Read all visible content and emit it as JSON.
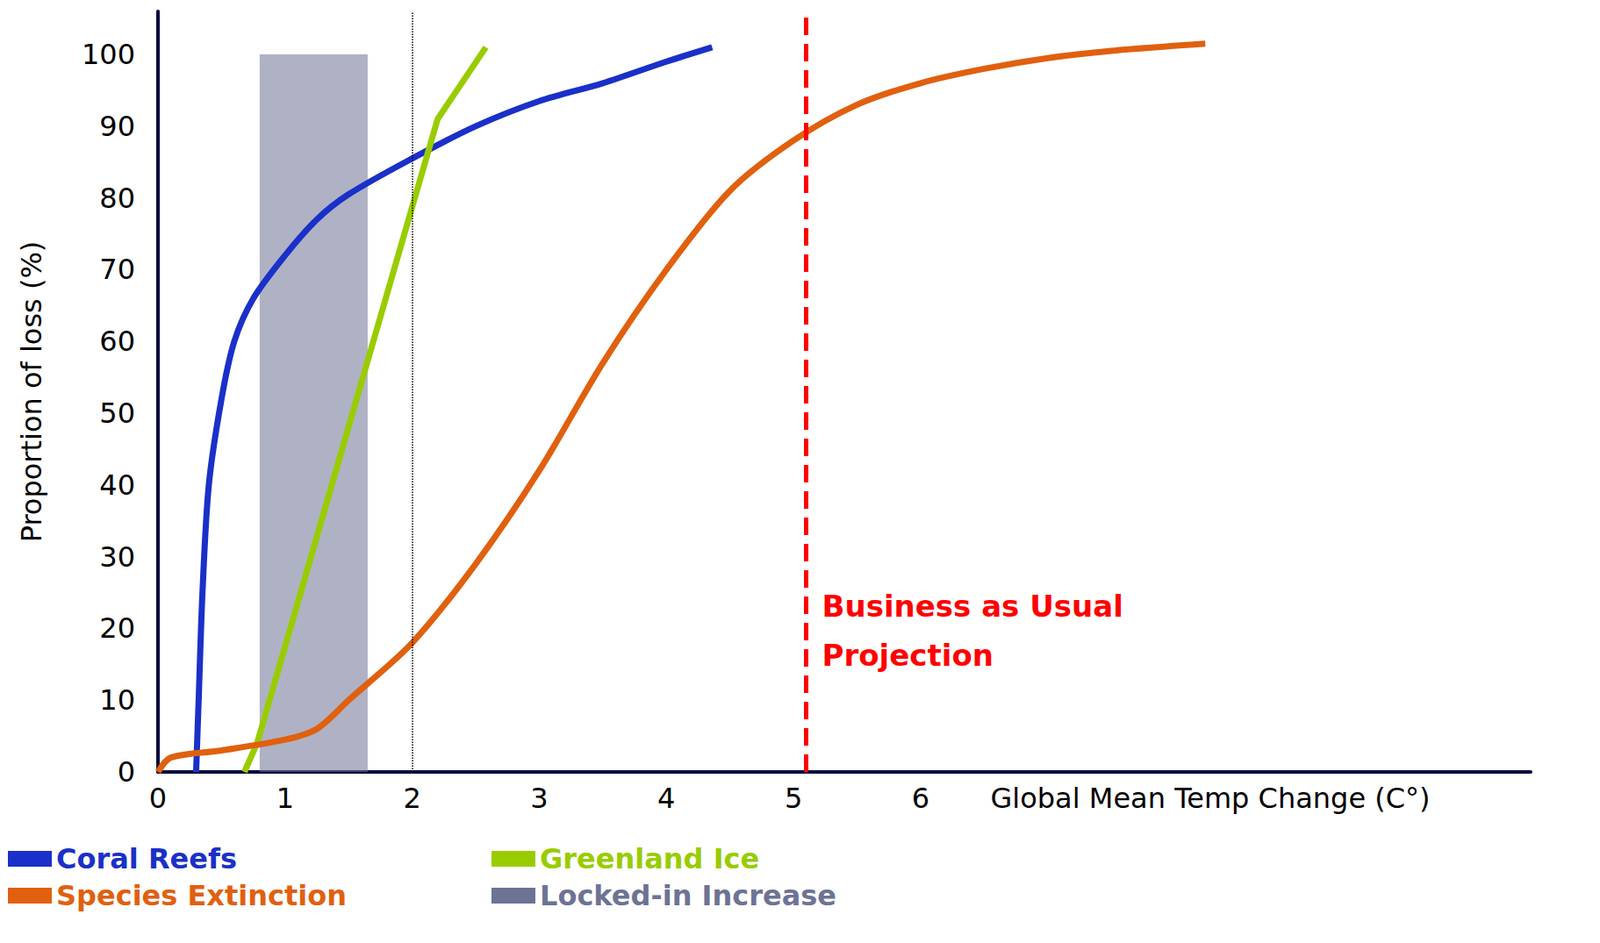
{
  "chart_data": {
    "type": "line",
    "xlabel": "Global Mean Temp Change (C°)",
    "ylabel": "Proportion of loss (%)",
    "xlim": [
      0,
      10.8
    ],
    "xticks": [
      0,
      1,
      2,
      3,
      4,
      5,
      6
    ],
    "ylim": [
      0,
      106
    ],
    "yticks": [
      0,
      10,
      20,
      30,
      40,
      50,
      60,
      70,
      80,
      90,
      100
    ],
    "grid": false,
    "legend": "bottom-left",
    "series": [
      {
        "name": "Coral Reefs",
        "color": "#1a30c8",
        "line_style": "smooth",
        "x": [
          0.3,
          0.32,
          0.35,
          0.4,
          0.5,
          0.6,
          0.75,
          1,
          1.25,
          1.5,
          2,
          2.5,
          3,
          3.5,
          4,
          4.36
        ],
        "values": [
          0,
          10,
          25,
          40,
          52,
          60,
          66,
          72,
          77,
          80.5,
          85.5,
          90,
          93.5,
          96,
          99,
          101
        ]
      },
      {
        "name": "Greenland Ice",
        "color": "#99cc00",
        "line_style": "solid",
        "x": [
          0.68,
          0.78,
          2.2,
          2.58
        ],
        "values": [
          0,
          4,
          91,
          101
        ]
      },
      {
        "name": "Species Extinction",
        "color": "#e0600f",
        "line_style": "smooth",
        "x": [
          0,
          0.1,
          0.5,
          1,
          1.25,
          1.5,
          2,
          2.5,
          3,
          3.5,
          4,
          4.5,
          5,
          5.5,
          6,
          6.5,
          7,
          7.5,
          8.24
        ],
        "values": [
          0,
          2,
          3,
          4.5,
          6,
          10,
          18,
          29,
          42,
          57,
          70,
          81,
          88,
          93,
          96,
          98,
          99.5,
          100.5,
          101.5
        ]
      }
    ],
    "bands": [
      {
        "name": "Locked-in Increase",
        "color": "#6d7394",
        "x": [
          0.8,
          1.65
        ],
        "y": [
          0,
          100
        ]
      }
    ],
    "vlines": [
      {
        "x": 2,
        "color": "#000000",
        "line_style": "dotted"
      },
      {
        "x": 5.1,
        "color": "#ff0000",
        "line_style": "dashed",
        "label": "Business as Usual Projection"
      }
    ]
  }
}
